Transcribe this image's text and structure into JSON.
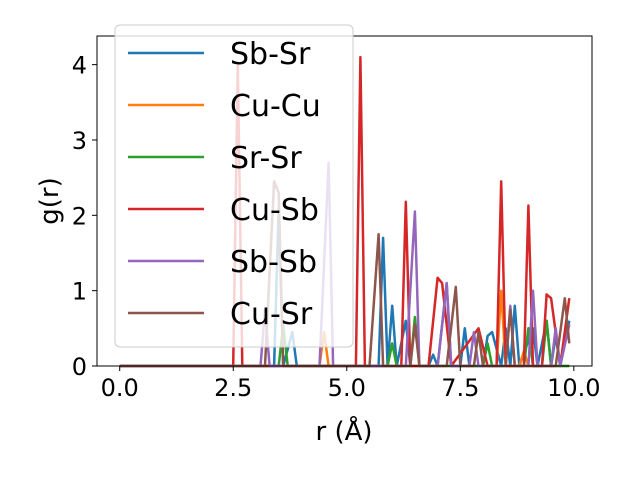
{
  "chart_data": {
    "type": "line",
    "xlabel": "r (Å)",
    "ylabel": "g(r)",
    "xlim": [
      -0.5,
      10.4
    ],
    "ylim": [
      0,
      4.38
    ],
    "xticks": [
      0.0,
      2.5,
      5.0,
      7.5,
      10.0
    ],
    "xtick_labels": [
      "0.0",
      "2.5",
      "5.0",
      "7.5",
      "10.0"
    ],
    "yticks": [
      0,
      1,
      2,
      3,
      4
    ],
    "ytick_labels": [
      "0",
      "1",
      "2",
      "3",
      "4"
    ],
    "grid": false,
    "legend_position": "upper-left",
    "series": [
      {
        "name": "Sb-Sr",
        "color": "#1f77b4",
        "points": [
          [
            0,
            0
          ],
          [
            3.4,
            0
          ],
          [
            3.5,
            2.1
          ],
          [
            3.6,
            0
          ],
          [
            3.8,
            0.45
          ],
          [
            3.9,
            0
          ],
          [
            5.7,
            0
          ],
          [
            5.8,
            1.7
          ],
          [
            5.9,
            0
          ],
          [
            6.0,
            0.8
          ],
          [
            6.1,
            0
          ],
          [
            6.3,
            0.6
          ],
          [
            6.4,
            0
          ],
          [
            6.8,
            0
          ],
          [
            6.9,
            0.15
          ],
          [
            7.0,
            0
          ],
          [
            7.2,
            1.1
          ],
          [
            7.3,
            0
          ],
          [
            7.5,
            0
          ],
          [
            7.6,
            0.5
          ],
          [
            7.7,
            0
          ],
          [
            8.0,
            0
          ],
          [
            8.1,
            0.4
          ],
          [
            8.2,
            0.45
          ],
          [
            8.4,
            0
          ],
          [
            8.5,
            0.5
          ],
          [
            8.6,
            0
          ],
          [
            8.7,
            0.8
          ],
          [
            8.8,
            0
          ],
          [
            9.1,
            0.5
          ],
          [
            9.2,
            0
          ],
          [
            9.4,
            0.6
          ],
          [
            9.5,
            0
          ],
          [
            9.6,
            0.4
          ],
          [
            9.7,
            0
          ],
          [
            9.9,
            0.6
          ]
        ]
      },
      {
        "name": "Cu-Cu",
        "color": "#ff7f0e",
        "points": [
          [
            0,
            0
          ],
          [
            4.4,
            0
          ],
          [
            4.5,
            0.45
          ],
          [
            4.6,
            0
          ],
          [
            8.3,
            0
          ],
          [
            8.4,
            1.0
          ],
          [
            8.5,
            0
          ],
          [
            8.8,
            0
          ],
          [
            8.9,
            0.2
          ],
          [
            9.0,
            0
          ],
          [
            9.9,
            0
          ]
        ]
      },
      {
        "name": "Sr-Sr",
        "color": "#2ca02c",
        "points": [
          [
            0,
            0
          ],
          [
            3.5,
            0
          ],
          [
            3.6,
            0.55
          ],
          [
            3.7,
            0
          ],
          [
            5.9,
            0
          ],
          [
            6.0,
            0.3
          ],
          [
            6.1,
            0
          ],
          [
            6.4,
            0
          ],
          [
            6.5,
            0.65
          ],
          [
            6.6,
            0
          ],
          [
            8.0,
            0
          ],
          [
            8.1,
            0.3
          ],
          [
            8.2,
            0
          ],
          [
            8.9,
            0
          ],
          [
            9.0,
            0.5
          ],
          [
            9.1,
            0
          ],
          [
            9.3,
            0
          ],
          [
            9.4,
            0.6
          ],
          [
            9.5,
            0
          ],
          [
            9.9,
            0
          ]
        ]
      },
      {
        "name": "Cu-Sb",
        "color": "#d62728",
        "points": [
          [
            0,
            0
          ],
          [
            2.5,
            0
          ],
          [
            2.6,
            4.0
          ],
          [
            2.7,
            0
          ],
          [
            5.2,
            0
          ],
          [
            5.3,
            4.1
          ],
          [
            5.4,
            0
          ],
          [
            6.2,
            0
          ],
          [
            6.3,
            2.18
          ],
          [
            6.4,
            0
          ],
          [
            6.8,
            0
          ],
          [
            7.0,
            1.17
          ],
          [
            7.1,
            1.1
          ],
          [
            7.3,
            0
          ],
          [
            7.9,
            0.5
          ],
          [
            8.1,
            0
          ],
          [
            8.3,
            0
          ],
          [
            8.4,
            2.45
          ],
          [
            8.5,
            0
          ],
          [
            8.9,
            0
          ],
          [
            9.0,
            2.13
          ],
          [
            9.1,
            0
          ],
          [
            9.3,
            0
          ],
          [
            9.4,
            0.95
          ],
          [
            9.5,
            0.9
          ],
          [
            9.7,
            0
          ],
          [
            9.9,
            0.9
          ]
        ]
      },
      {
        "name": "Sb-Sb",
        "color": "#9467bd",
        "points": [
          [
            0,
            0
          ],
          [
            3.1,
            0
          ],
          [
            3.2,
            0.75
          ],
          [
            3.3,
            0
          ],
          [
            4.4,
            0
          ],
          [
            4.6,
            2.7
          ],
          [
            4.7,
            0
          ],
          [
            6.3,
            0
          ],
          [
            6.5,
            2.05
          ],
          [
            6.6,
            0
          ],
          [
            7.0,
            0
          ],
          [
            7.2,
            1.1
          ],
          [
            7.3,
            0
          ],
          [
            7.7,
            0
          ],
          [
            7.8,
            0.45
          ],
          [
            7.9,
            0
          ],
          [
            8.5,
            0
          ],
          [
            8.6,
            0.8
          ],
          [
            8.7,
            0
          ],
          [
            9.0,
            0
          ],
          [
            9.1,
            1.0
          ],
          [
            9.2,
            0
          ],
          [
            9.5,
            0
          ],
          [
            9.6,
            0.5
          ],
          [
            9.7,
            0
          ],
          [
            9.9,
            0.55
          ]
        ]
      },
      {
        "name": "Cu-Sr",
        "color": "#8c564b",
        "points": [
          [
            0,
            0
          ],
          [
            3.2,
            0
          ],
          [
            3.4,
            2.45
          ],
          [
            3.5,
            2.3
          ],
          [
            3.6,
            0
          ],
          [
            5.5,
            0
          ],
          [
            5.7,
            1.75
          ],
          [
            5.8,
            0
          ],
          [
            6.4,
            0
          ],
          [
            6.5,
            0.55
          ],
          [
            6.6,
            0
          ],
          [
            7.2,
            0
          ],
          [
            7.4,
            1.05
          ],
          [
            7.5,
            0
          ],
          [
            7.8,
            0
          ],
          [
            7.9,
            0.45
          ],
          [
            8.0,
            0
          ],
          [
            8.5,
            0
          ],
          [
            8.6,
            0.75
          ],
          [
            8.7,
            0
          ],
          [
            9.6,
            0
          ],
          [
            9.8,
            0.9
          ],
          [
            9.9,
            0.3
          ]
        ]
      }
    ]
  }
}
